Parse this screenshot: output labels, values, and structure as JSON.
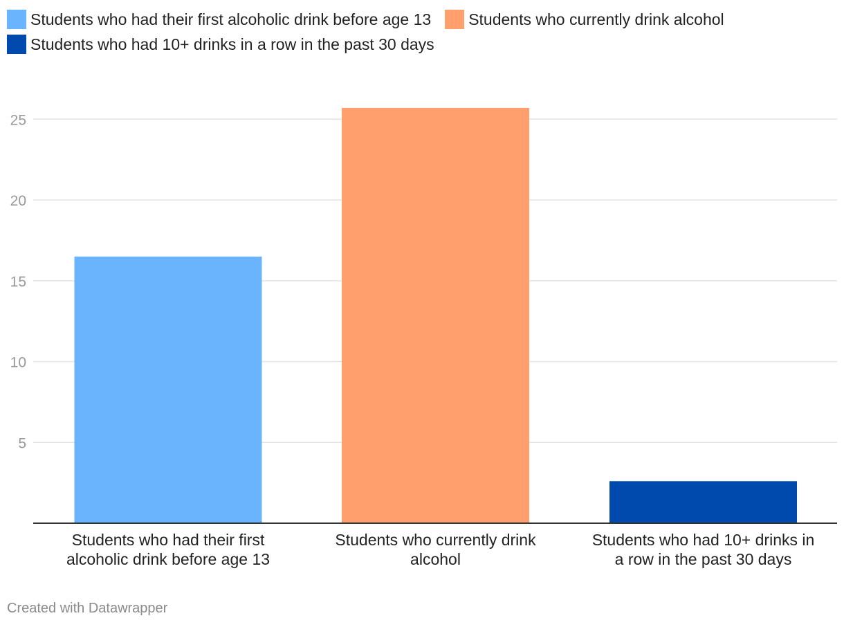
{
  "chart_data": {
    "type": "bar",
    "categories": [
      "Students who had their first alcoholic drink before age 13",
      "Students who currently drink alcohol",
      "Students who had 10+ drinks in a row in the past 30 days"
    ],
    "category_label_lines": [
      [
        "Students who had their first",
        "alcoholic drink before age 13"
      ],
      [
        "Students who currently drink",
        "alcohol"
      ],
      [
        "Students who had 10+ drinks in",
        "a row in the past 30 days"
      ]
    ],
    "values": [
      16.5,
      25.7,
      2.6
    ],
    "colors": [
      "#6ab4fe",
      "#ff9f6e",
      "#004aad"
    ],
    "ylim": [
      0,
      25.7
    ],
    "yticks": [
      5,
      10,
      15,
      20,
      25
    ],
    "grid": true,
    "legend_position": "top-left",
    "title": "",
    "xlabel": "",
    "ylabel": ""
  },
  "legend": {
    "items": [
      {
        "label": "Students who had their first alcoholic drink before age 13",
        "color": "#6ab4fe"
      },
      {
        "label": "Students who currently drink alcohol",
        "color": "#ff9f6e"
      },
      {
        "label": "Students who had 10+ drinks in a row in the past 30 days",
        "color": "#004aad"
      }
    ]
  },
  "footer": {
    "credit": "Created with Datawrapper"
  }
}
